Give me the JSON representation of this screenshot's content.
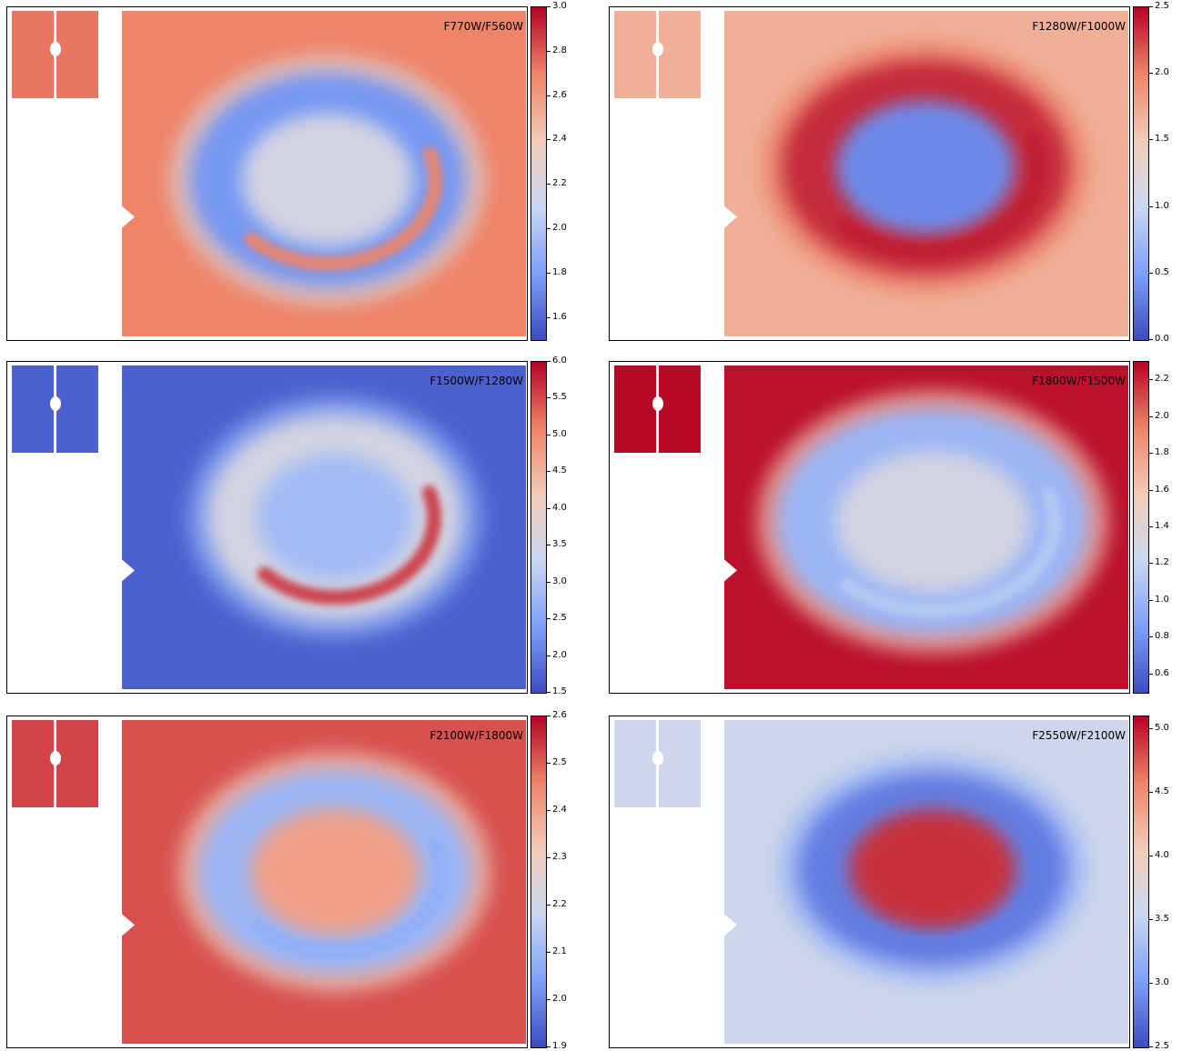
{
  "colormap": "coolwarm",
  "colormap_stops": [
    "#3b4cc0",
    "#7da0f9",
    "#c9d7f0",
    "#f2cbb7",
    "#ee8468",
    "#b40426"
  ],
  "panels": [
    {
      "label": "F770W/F560W",
      "colorbar": {
        "min": 1.5,
        "max": 3.0,
        "ticks": [
          "1.6",
          "1.8",
          "2.0",
          "2.2",
          "2.4",
          "2.6",
          "2.8",
          "3.0"
        ]
      },
      "levels": {
        "background": 0.8,
        "ring": 0.18,
        "interior": 0.45,
        "arc": 0.8,
        "inset": 0.82
      }
    },
    {
      "label": "F1280W/F1000W",
      "colorbar": {
        "min": 0.0,
        "max": 2.5,
        "ticks": [
          "0.0",
          "0.5",
          "1.0",
          "1.5",
          "2.0",
          "2.5"
        ]
      },
      "levels": {
        "background": 0.68,
        "ring": 0.94,
        "interior": 0.15,
        "arc": 0.96,
        "inset": 0.68
      }
    },
    {
      "label": "F1500W/F1280W",
      "colorbar": {
        "min": 1.5,
        "max": 6.0,
        "ticks": [
          "1.5",
          "2.0",
          "2.5",
          "3.0",
          "3.5",
          "4.0",
          "4.5",
          "5.0",
          "5.5",
          "6.0"
        ]
      },
      "levels": {
        "background": 0.05,
        "ring": 0.45,
        "interior": 0.3,
        "arc": 0.92,
        "inset": 0.05
      }
    },
    {
      "label": "F1800W/F1500W",
      "colorbar": {
        "min": 0.5,
        "max": 2.3,
        "ticks": [
          "0.6",
          "0.8",
          "1.0",
          "1.2",
          "1.4",
          "1.6",
          "1.8",
          "2.0",
          "2.2"
        ]
      },
      "levels": {
        "background": 0.98,
        "ring": 0.28,
        "interior": 0.45,
        "arc": 0.35,
        "inset": 0.99
      }
    },
    {
      "label": "F2100W/F1800W",
      "colorbar": {
        "min": 1.9,
        "max": 2.6,
        "ticks": [
          "1.9",
          "2.0",
          "2.1",
          "2.2",
          "2.3",
          "2.4",
          "2.5",
          "2.6"
        ]
      },
      "levels": {
        "background": 0.88,
        "ring": 0.28,
        "interior": 0.72,
        "arc": 0.25,
        "inset": 0.9
      }
    },
    {
      "label": "F2550W/F2100W",
      "colorbar": {
        "min": 2.5,
        "max": 5.1,
        "ticks": [
          "2.5",
          "3.0",
          "3.5",
          "4.0",
          "4.5",
          "5.0"
        ]
      },
      "levels": {
        "background": 0.42,
        "ring": 0.12,
        "interior": 0.93,
        "arc": 0.12,
        "inset": 0.42
      }
    }
  ]
}
